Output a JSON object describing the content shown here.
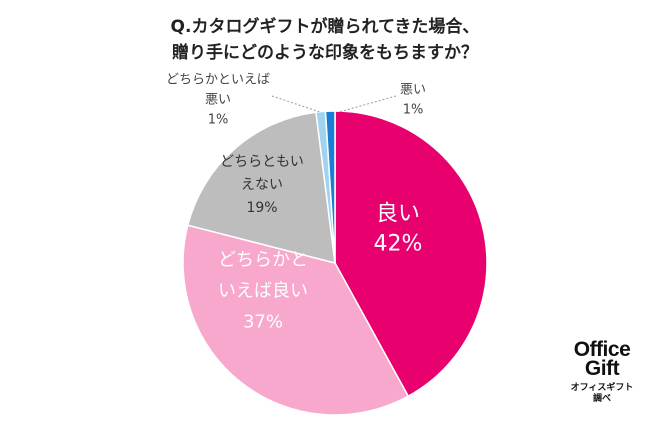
{
  "title": {
    "line1": "Q.カタログギフトが贈られてきた場合、",
    "line2": "贈り手にどのような印象をもちますか？"
  },
  "chart_data": {
    "type": "pie",
    "slices": [
      {
        "label_lines": [
          "良い"
        ],
        "value": 42,
        "value_label": "42%",
        "color": "#e8006e"
      },
      {
        "label_lines": [
          "どちらかと",
          "いえば良い"
        ],
        "value": 37,
        "value_label": "37%",
        "color": "#f7a8cc"
      },
      {
        "label_lines": [
          "どちらともい",
          "えない"
        ],
        "value": 19,
        "value_label": "19%",
        "color": "#bdbdbd"
      },
      {
        "label_lines": [
          "どちらかといえば",
          "悪い"
        ],
        "value": 1,
        "value_label": "1%",
        "color": "#9fd3ef"
      },
      {
        "label_lines": [
          "悪い"
        ],
        "value": 1,
        "value_label": "1%",
        "color": "#1a7fd4"
      }
    ]
  },
  "logo": {
    "line1": "Office",
    "line2": "Gift",
    "line3": "オフィスギフト",
    "line4": "調べ"
  }
}
